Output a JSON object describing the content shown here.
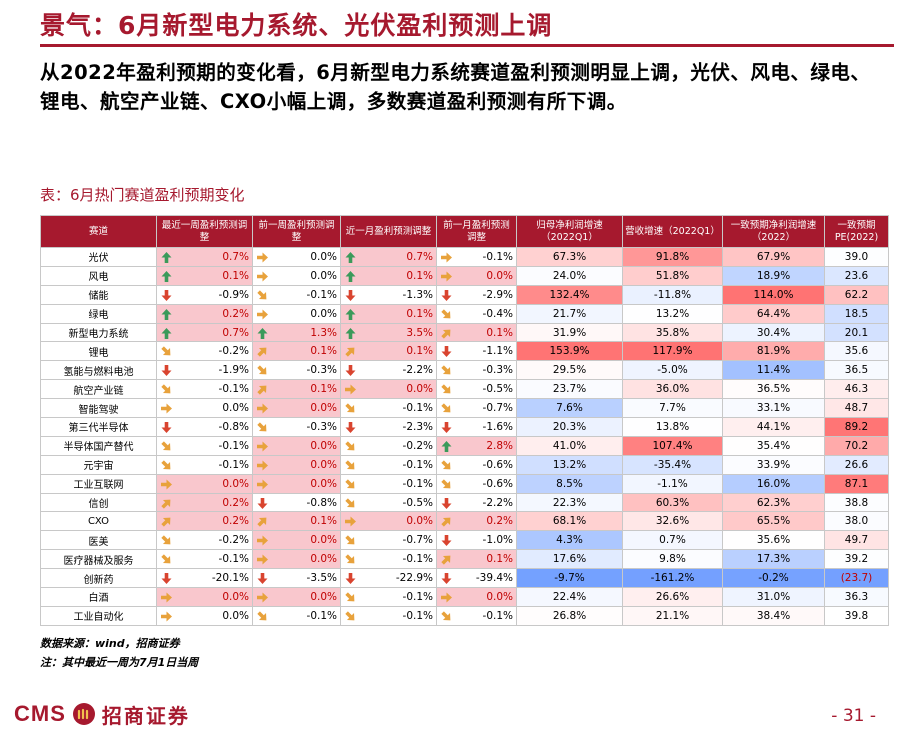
{
  "title": "景气：6月新型电力系统、光伏盈利预测上调",
  "summary": "从2022年盈利预期的变化看，6月新型电力系统赛道盈利预测明显上调，光伏、风电、绿电、锂电、航空产业链、CXO小幅上调，多数赛道盈利预测有所下调。",
  "table_title": "表：6月热门赛道盈利预期变化",
  "headers": [
    "赛道",
    "最近一周盈利预测调整",
    "前一周盈利预测调整",
    "近一月盈利预测调整",
    "前一月盈利预测调整",
    "归母净利润增速（2022Q1）",
    "营收增速（2022Q1）",
    "一致预期净利润增速（2022）",
    "一致预期PE(2022)"
  ],
  "colors": {
    "brand": "#a6192e",
    "up": "#3b9a5a",
    "down": "#d9442f",
    "flat": "#e8a23c"
  },
  "rows": [
    {
      "name": "光伏",
      "a": [
        [
          "up",
          "0.7%"
        ],
        [
          "flat",
          "0.0%"
        ],
        [
          "up",
          "0.7%"
        ],
        [
          "flat",
          "-0.1%"
        ]
      ],
      "b": [
        "67.3%",
        "91.8%",
        "67.9%",
        "39.0"
      ]
    },
    {
      "name": "风电",
      "a": [
        [
          "up",
          "0.1%"
        ],
        [
          "flat",
          "0.0%"
        ],
        [
          "up",
          "0.1%"
        ],
        [
          "flat",
          "0.0%"
        ]
      ],
      "b": [
        "24.0%",
        "51.8%",
        "18.9%",
        "23.6"
      ]
    },
    {
      "name": "储能",
      "a": [
        [
          "down",
          "-0.9%"
        ],
        [
          "down-right",
          "-0.1%"
        ],
        [
          "down",
          "-1.3%"
        ],
        [
          "down",
          "-2.9%"
        ]
      ],
      "b": [
        "132.4%",
        "-11.8%",
        "114.0%",
        "62.2"
      ]
    },
    {
      "name": "绿电",
      "a": [
        [
          "up",
          "0.2%"
        ],
        [
          "flat",
          "0.0%"
        ],
        [
          "up",
          "0.1%"
        ],
        [
          "down-right",
          "-0.4%"
        ]
      ],
      "b": [
        "21.7%",
        "13.2%",
        "64.4%",
        "18.5"
      ]
    },
    {
      "name": "新型电力系统",
      "a": [
        [
          "up",
          "0.7%"
        ],
        [
          "up",
          "1.3%"
        ],
        [
          "up",
          "3.5%"
        ],
        [
          "up-right",
          "0.1%"
        ]
      ],
      "b": [
        "31.9%",
        "35.8%",
        "30.4%",
        "20.1"
      ]
    },
    {
      "name": "锂电",
      "a": [
        [
          "down-right",
          "-0.2%"
        ],
        [
          "up-right",
          "0.1%"
        ],
        [
          "up-right",
          "0.1%"
        ],
        [
          "down",
          "-1.1%"
        ]
      ],
      "b": [
        "153.9%",
        "117.9%",
        "81.9%",
        "35.6"
      ]
    },
    {
      "name": "氢能与燃料电池",
      "a": [
        [
          "down",
          "-1.9%"
        ],
        [
          "down-right",
          "-0.3%"
        ],
        [
          "down",
          "-2.2%"
        ],
        [
          "down-right",
          "-0.3%"
        ]
      ],
      "b": [
        "29.5%",
        "-5.0%",
        "11.4%",
        "36.5"
      ]
    },
    {
      "name": "航空产业链",
      "a": [
        [
          "down-right",
          "-0.1%"
        ],
        [
          "up-right",
          "0.1%"
        ],
        [
          "flat",
          "0.0%"
        ],
        [
          "down-right",
          "-0.5%"
        ]
      ],
      "b": [
        "23.7%",
        "36.0%",
        "36.5%",
        "46.3"
      ]
    },
    {
      "name": "智能驾驶",
      "a": [
        [
          "flat",
          "0.0%"
        ],
        [
          "flat",
          "0.0%"
        ],
        [
          "down-right",
          "-0.1%"
        ],
        [
          "down-right",
          "-0.7%"
        ]
      ],
      "b": [
        "7.6%",
        "7.7%",
        "33.1%",
        "48.7"
      ]
    },
    {
      "name": "第三代半导体",
      "a": [
        [
          "down",
          "-0.8%"
        ],
        [
          "down-right",
          "-0.3%"
        ],
        [
          "down",
          "-2.3%"
        ],
        [
          "down",
          "-1.6%"
        ]
      ],
      "b": [
        "20.3%",
        "13.8%",
        "44.1%",
        "89.2"
      ]
    },
    {
      "name": "半导体国产替代",
      "a": [
        [
          "down-right",
          "-0.1%"
        ],
        [
          "flat",
          "0.0%"
        ],
        [
          "down-right",
          "-0.2%"
        ],
        [
          "up",
          "2.8%"
        ]
      ],
      "b": [
        "41.0%",
        "107.4%",
        "35.4%",
        "70.2"
      ]
    },
    {
      "name": "元宇宙",
      "a": [
        [
          "down-right",
          "-0.1%"
        ],
        [
          "flat",
          "0.0%"
        ],
        [
          "down-right",
          "-0.1%"
        ],
        [
          "down-right",
          "-0.6%"
        ]
      ],
      "b": [
        "13.2%",
        "-35.4%",
        "33.9%",
        "26.6"
      ]
    },
    {
      "name": "工业互联网",
      "a": [
        [
          "flat",
          "0.0%"
        ],
        [
          "flat",
          "0.0%"
        ],
        [
          "down-right",
          "-0.1%"
        ],
        [
          "down-right",
          "-0.6%"
        ]
      ],
      "b": [
        "8.5%",
        "-1.1%",
        "16.0%",
        "87.1"
      ]
    },
    {
      "name": "信创",
      "a": [
        [
          "up-right",
          "0.2%"
        ],
        [
          "down",
          "-0.8%"
        ],
        [
          "down-right",
          "-0.5%"
        ],
        [
          "down",
          "-2.2%"
        ]
      ],
      "b": [
        "22.3%",
        "60.3%",
        "62.3%",
        "38.8"
      ]
    },
    {
      "name": "CXO",
      "a": [
        [
          "up-right",
          "0.2%"
        ],
        [
          "up-right",
          "0.1%"
        ],
        [
          "flat",
          "0.0%"
        ],
        [
          "up-right",
          "0.2%"
        ]
      ],
      "b": [
        "68.1%",
        "32.6%",
        "65.5%",
        "38.0"
      ]
    },
    {
      "name": "医美",
      "a": [
        [
          "down-right",
          "-0.2%"
        ],
        [
          "flat",
          "0.0%"
        ],
        [
          "down-right",
          "-0.7%"
        ],
        [
          "down",
          "-1.0%"
        ]
      ],
      "b": [
        "4.3%",
        "0.7%",
        "35.6%",
        "49.7"
      ]
    },
    {
      "name": "医疗器械及服务",
      "a": [
        [
          "down-right",
          "-0.1%"
        ],
        [
          "flat",
          "0.0%"
        ],
        [
          "down-right",
          "-0.1%"
        ],
        [
          "up-right",
          "0.1%"
        ]
      ],
      "b": [
        "17.6%",
        "9.8%",
        "17.3%",
        "39.2"
      ]
    },
    {
      "name": "创新药",
      "a": [
        [
          "down",
          "-20.1%"
        ],
        [
          "down",
          "-3.5%"
        ],
        [
          "down",
          "-22.9%"
        ],
        [
          "down",
          "-39.4%"
        ]
      ],
      "b": [
        "-9.7%",
        "-161.2%",
        "-0.2%",
        "(23.7)"
      ]
    },
    {
      "name": "白酒",
      "a": [
        [
          "flat",
          "0.0%"
        ],
        [
          "flat",
          "0.0%"
        ],
        [
          "down-right",
          "-0.1%"
        ],
        [
          "flat",
          "0.0%"
        ]
      ],
      "b": [
        "22.4%",
        "26.6%",
        "31.0%",
        "36.3"
      ]
    },
    {
      "name": "工业自动化",
      "a": [
        [
          "flat",
          "0.0%"
        ],
        [
          "down-right",
          "-0.1%"
        ],
        [
          "down-right",
          "-0.1%"
        ],
        [
          "down-right",
          "-0.1%"
        ]
      ],
      "b": [
        "26.8%",
        "21.1%",
        "38.4%",
        "39.8"
      ]
    }
  ],
  "source": "数据来源：wind，招商证券",
  "footnote": "注：其中最近一周为7月1日当周",
  "logo": {
    "latin": "CMS",
    "chinese": "招商证券"
  },
  "page_number": "- 31 -"
}
